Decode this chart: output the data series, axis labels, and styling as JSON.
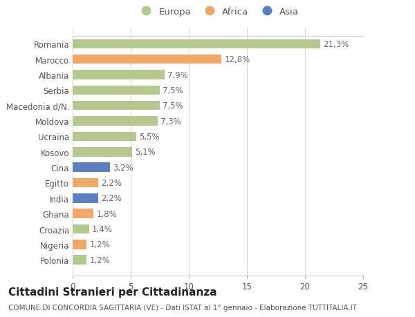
{
  "categories": [
    "Polonia",
    "Nigeria",
    "Croazia",
    "Ghana",
    "India",
    "Egitto",
    "Cina",
    "Kosovo",
    "Ucraina",
    "Moldova",
    "Macedonia d/N.",
    "Serbia",
    "Albania",
    "Marocco",
    "Romania"
  ],
  "values": [
    1.2,
    1.2,
    1.4,
    1.8,
    2.2,
    2.2,
    3.2,
    5.1,
    5.5,
    7.3,
    7.5,
    7.5,
    7.9,
    12.8,
    21.3
  ],
  "labels": [
    "1,2%",
    "1,2%",
    "1,4%",
    "1,8%",
    "2,2%",
    "2,2%",
    "3,2%",
    "5,1%",
    "5,5%",
    "7,3%",
    "7,5%",
    "7,5%",
    "7,9%",
    "12,8%",
    "21,3%"
  ],
  "colors": [
    "#b5c98e",
    "#f0a868",
    "#b5c98e",
    "#f0a868",
    "#5b7fbf",
    "#f0a868",
    "#5b7fbf",
    "#b5c98e",
    "#b5c98e",
    "#b5c98e",
    "#b5c98e",
    "#b5c98e",
    "#b5c98e",
    "#f0a868",
    "#b5c98e"
  ],
  "legend_labels": [
    "Europa",
    "Africa",
    "Asia"
  ],
  "legend_colors": [
    "#b5c98e",
    "#f0a868",
    "#5b7fbf"
  ],
  "title": "Cittadini Stranieri per Cittadinanza",
  "subtitle": "COMUNE DI CONCORDIA SAGITTARIA (VE) - Dati ISTAT al 1° gennaio - Elaborazione TUTTITALIA.IT",
  "xlim": [
    0,
    25
  ],
  "xticks": [
    0,
    5,
    10,
    15,
    20,
    25
  ],
  "bg_color": "#ffffff",
  "grid_color": "#d8d8d8",
  "bar_height": 0.6,
  "label_fontsize": 8.5,
  "axis_fontsize": 8.5,
  "title_fontsize": 11,
  "subtitle_fontsize": 7.5
}
